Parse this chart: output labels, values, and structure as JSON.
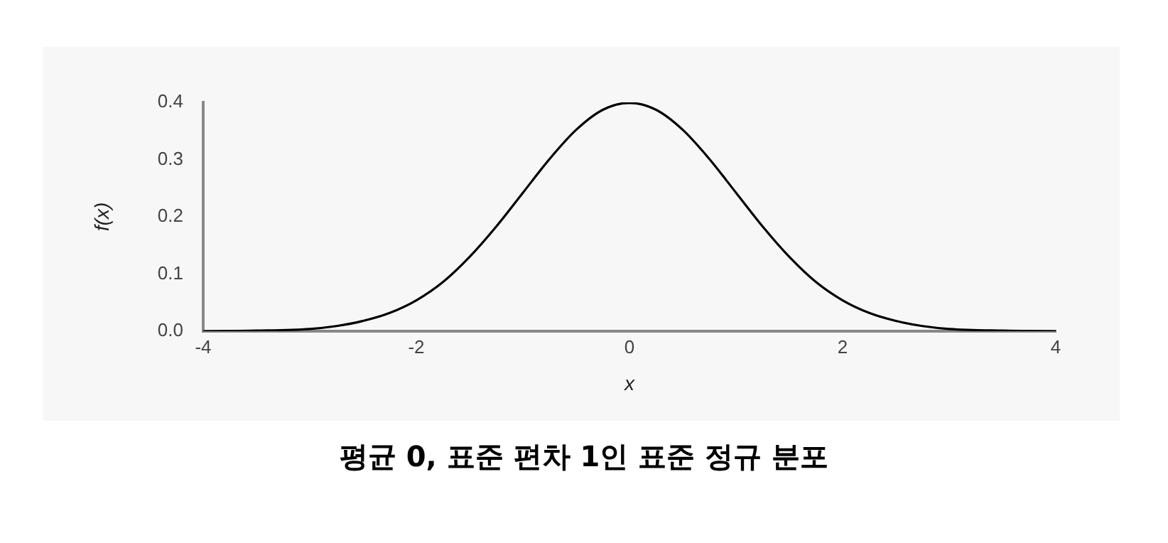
{
  "chart_data": {
    "type": "line",
    "title": "평균 0, 표준 편차 1인 표준 정규 분포",
    "xlabel": "x",
    "ylabel": "f(x)",
    "x": [
      -4,
      -3.5,
      -3,
      -2.75,
      -2.5,
      -2.25,
      -2,
      -1.75,
      -1.5,
      -1.25,
      -1,
      -0.75,
      -0.5,
      -0.25,
      0,
      0.25,
      0.5,
      0.75,
      1,
      1.25,
      1.5,
      1.75,
      2,
      2.25,
      2.5,
      2.75,
      3,
      3.5,
      4
    ],
    "series": [
      {
        "color": "#000000",
        "values": [
          0,
          0.001,
          0.004,
          0.009,
          0.018,
          0.032,
          0.054,
          0.086,
          0.13,
          0.183,
          0.242,
          0.301,
          0.352,
          0.387,
          0.399,
          0.387,
          0.352,
          0.301,
          0.242,
          0.183,
          0.13,
          0.086,
          0.054,
          0.032,
          0.018,
          0.009,
          0.004,
          0.001,
          0
        ]
      }
    ],
    "xlim": [
      -4,
      4
    ],
    "xticks": [
      -4,
      -2,
      0,
      2,
      4
    ],
    "ylim": [
      0,
      0.4
    ],
    "yticks": [
      {
        "value": 0,
        "label": "0.0"
      },
      {
        "value": 0.1,
        "label": "0.1"
      },
      {
        "value": 0.2,
        "label": "0.2"
      },
      {
        "value": 0.3,
        "label": "0.3"
      },
      {
        "value": 0.4,
        "label": "0.4"
      }
    ],
    "grid": false,
    "legend": false,
    "marker": "none",
    "line_style": "solid"
  }
}
